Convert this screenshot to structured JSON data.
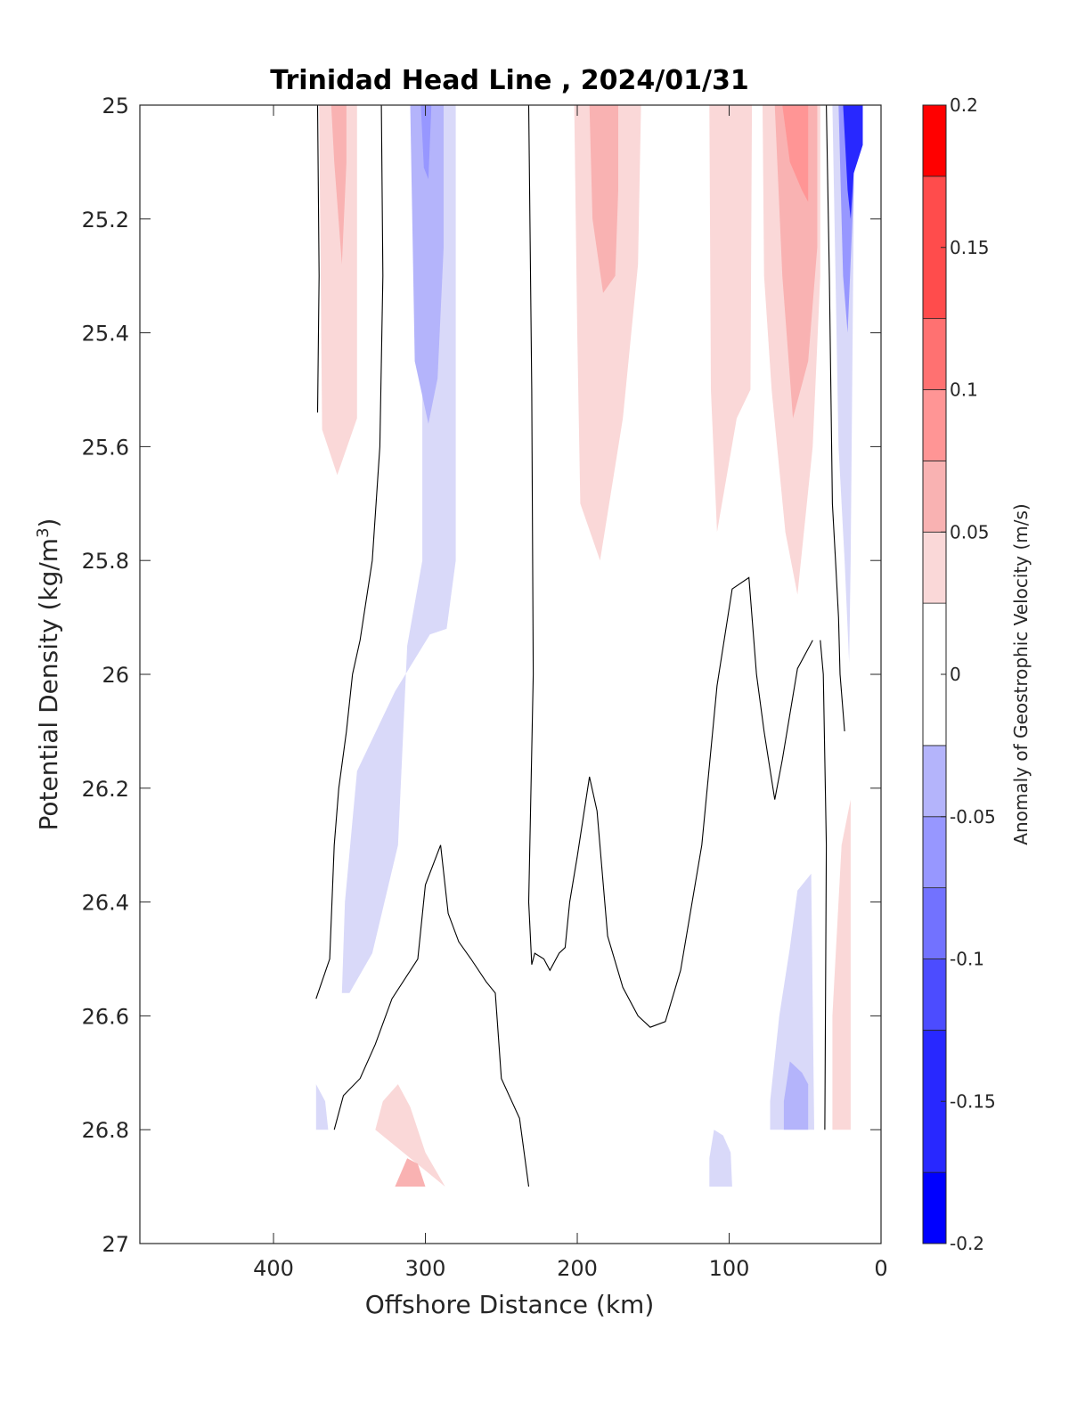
{
  "chart_data": {
    "type": "heatmap",
    "title": "Trinidad Head Line , 2024/01/31",
    "xlabel": "Offshore Distance (km)",
    "ylabel": "Potential Density (kg/m",
    "ylabel_superscript": "3",
    "ylabel_suffix": ")",
    "x_reversed": true,
    "y_reversed": true,
    "xlim": [
      0,
      488
    ],
    "ylim": [
      25,
      27
    ],
    "xticks": [
      400,
      300,
      200,
      100,
      0
    ],
    "yticks": [
      25,
      25.2,
      25.4,
      25.6,
      25.8,
      26,
      26.2,
      26.4,
      26.6,
      26.8,
      27
    ],
    "colorbar": {
      "label": "Anomaly of Geostrophic Velocity (m/s)",
      "range": [
        -0.2,
        0.2
      ],
      "ticks": [
        -0.2,
        -0.15,
        -0.1,
        -0.05,
        0,
        0.05,
        0.1,
        0.15,
        0.2
      ],
      "tick_labels": [
        "-0.2",
        "-0.15",
        "-0.1",
        "-0.05",
        "0",
        "0.05",
        "0.1",
        "0.15",
        "0.2"
      ],
      "levels": [
        {
          "min": -0.2,
          "max": -0.175,
          "color": "#0000ff"
        },
        {
          "min": -0.175,
          "max": -0.125,
          "color": "#2828ff"
        },
        {
          "min": -0.125,
          "max": -0.1,
          "color": "#4c4cff"
        },
        {
          "min": -0.1,
          "max": -0.075,
          "color": "#7272ff"
        },
        {
          "min": -0.075,
          "max": -0.05,
          "color": "#9797ff"
        },
        {
          "min": -0.05,
          "max": -0.025,
          "color": "#b4b4fb"
        },
        {
          "min": -0.025,
          "max": 0.025,
          "color": "#ffffff"
        },
        {
          "min": 0.025,
          "max": 0.05,
          "color": "#fad8d8"
        },
        {
          "min": 0.05,
          "max": 0.075,
          "color": "#f9b2b2"
        },
        {
          "min": 0.075,
          "max": 0.1,
          "color": "#ff9595"
        },
        {
          "min": 0.1,
          "max": 0.125,
          "color": "#ff7171"
        },
        {
          "min": 0.125,
          "max": 0.175,
          "color": "#ff4c4c"
        },
        {
          "min": 0.175,
          "max": 0.2,
          "color": "#ff0000"
        }
      ]
    },
    "filled_regions": [
      {
        "name": "pos-1",
        "value": 0.04,
        "color": "#fad8d8",
        "points": [
          [
            370,
            25.0
          ],
          [
            345,
            25.0
          ],
          [
            345,
            25.55
          ],
          [
            358,
            25.65
          ],
          [
            368,
            25.57
          ]
        ]
      },
      {
        "name": "pos-1-core",
        "value": 0.06,
        "color": "#f9b2b2",
        "points": [
          [
            362,
            25.0
          ],
          [
            352,
            25.0
          ],
          [
            352,
            25.1
          ],
          [
            355,
            25.28
          ],
          [
            360,
            25.1
          ]
        ]
      },
      {
        "name": "neg-1",
        "value": -0.04,
        "color": "#d9d9f9",
        "points": [
          [
            302,
            25.0
          ],
          [
            280,
            25.0
          ],
          [
            280,
            25.8
          ],
          [
            286,
            25.92
          ],
          [
            297,
            25.93
          ],
          [
            320,
            26.03
          ],
          [
            345,
            26.17
          ],
          [
            353,
            26.4
          ],
          [
            355,
            26.56
          ],
          [
            350,
            26.56
          ],
          [
            335,
            26.49
          ],
          [
            318,
            26.3
          ],
          [
            312,
            25.95
          ],
          [
            302,
            25.8
          ]
        ]
      },
      {
        "name": "neg-1-core",
        "value": -0.07,
        "color": "#b4b4fb",
        "points": [
          [
            302,
            25.0
          ],
          [
            288,
            25.0
          ],
          [
            288,
            25.25
          ],
          [
            292,
            25.48
          ],
          [
            298,
            25.56
          ],
          [
            307,
            25.45
          ],
          [
            310,
            25.0
          ]
        ]
      },
      {
        "name": "neg-1-center",
        "value": -0.09,
        "color": "#9797ff",
        "points": [
          [
            303,
            25.0
          ],
          [
            296,
            25.0
          ],
          [
            298,
            25.13
          ],
          [
            301,
            25.11
          ]
        ]
      },
      {
        "name": "pos-2",
        "value": 0.04,
        "color": "#fad8d8",
        "points": [
          [
            202,
            25.0
          ],
          [
            158,
            25.0
          ],
          [
            160,
            25.28
          ],
          [
            170,
            25.55
          ],
          [
            185,
            25.8
          ],
          [
            198,
            25.7
          ],
          [
            200,
            25.4
          ]
        ]
      },
      {
        "name": "pos-2-core",
        "value": 0.07,
        "color": "#f9b2b2",
        "points": [
          [
            192,
            25.0
          ],
          [
            173,
            25.0
          ],
          [
            173,
            25.15
          ],
          [
            175,
            25.3
          ],
          [
            183,
            25.33
          ],
          [
            190,
            25.2
          ]
        ]
      },
      {
        "name": "pos-3",
        "value": 0.04,
        "color": "#fad8d8",
        "points": [
          [
            113,
            25.0
          ],
          [
            85,
            25.0
          ],
          [
            86,
            25.5
          ],
          [
            95,
            25.55
          ],
          [
            108,
            25.75
          ],
          [
            112,
            25.5
          ]
        ]
      },
      {
        "name": "pos-4",
        "value": 0.05,
        "color": "#fad8d8",
        "points": [
          [
            78,
            25.0
          ],
          [
            40,
            25.0
          ],
          [
            40,
            25.3
          ],
          [
            45,
            25.6
          ],
          [
            55,
            25.86
          ],
          [
            63,
            25.75
          ],
          [
            72,
            25.5
          ],
          [
            77,
            25.3
          ]
        ]
      },
      {
        "name": "pos-4-core",
        "value": 0.07,
        "color": "#f9b2b2",
        "points": [
          [
            70,
            25.0
          ],
          [
            42,
            25.0
          ],
          [
            42,
            25.25
          ],
          [
            48,
            25.45
          ],
          [
            58,
            25.55
          ],
          [
            65,
            25.3
          ]
        ]
      },
      {
        "name": "pos-4-center",
        "value": 0.09,
        "color": "#ff9595",
        "points": [
          [
            65,
            25.0
          ],
          [
            48,
            25.0
          ],
          [
            48,
            25.17
          ],
          [
            52,
            25.15
          ],
          [
            60,
            25.1
          ]
        ]
      },
      {
        "name": "neg-coast",
        "value": -0.05,
        "color": "#d9d9f9",
        "points": [
          [
            32,
            25.0
          ],
          [
            18,
            25.0
          ],
          [
            18,
            25.2
          ],
          [
            20,
            25.8
          ],
          [
            21,
            25.98
          ],
          [
            24,
            25.8
          ],
          [
            28,
            25.6
          ],
          [
            30,
            25.3
          ]
        ]
      },
      {
        "name": "neg-coast-core",
        "value": -0.08,
        "color": "#9797ff",
        "points": [
          [
            28,
            25.0
          ],
          [
            18,
            25.0
          ],
          [
            18,
            25.15
          ],
          [
            22,
            25.4
          ],
          [
            25,
            25.3
          ],
          [
            27,
            25.1
          ]
        ]
      },
      {
        "name": "neg-coast-strong",
        "value": -0.15,
        "color": "#2828ff",
        "points": [
          [
            25,
            25.0
          ],
          [
            12,
            25.0
          ],
          [
            12,
            25.07
          ],
          [
            18,
            25.12
          ],
          [
            20,
            25.2
          ],
          [
            22,
            25.15
          ]
        ]
      },
      {
        "name": "pos-5",
        "value": 0.04,
        "color": "#fad8d8",
        "points": [
          [
            30,
            26.8
          ],
          [
            20,
            26.8
          ],
          [
            20,
            26.22
          ],
          [
            26,
            26.3
          ],
          [
            32,
            26.6
          ],
          [
            32,
            26.8
          ]
        ]
      },
      {
        "name": "neg-2",
        "value": -0.04,
        "color": "#d9d9f9",
        "points": [
          [
            73,
            26.8
          ],
          [
            44,
            26.8
          ],
          [
            46,
            26.35
          ],
          [
            55,
            26.38
          ],
          [
            60,
            26.48
          ],
          [
            67,
            26.6
          ],
          [
            73,
            26.75
          ]
        ]
      },
      {
        "name": "neg-2-core",
        "value": -0.07,
        "color": "#b4b4fb",
        "points": [
          [
            64,
            26.8
          ],
          [
            48,
            26.8
          ],
          [
            48,
            26.72
          ],
          [
            52,
            26.7
          ],
          [
            60,
            26.68
          ],
          [
            64,
            26.75
          ]
        ]
      },
      {
        "name": "pos-6",
        "value": 0.04,
        "color": "#fad8d8",
        "points": [
          [
            333,
            26.8
          ],
          [
            287,
            26.9
          ],
          [
            300,
            26.84
          ],
          [
            310,
            26.76
          ],
          [
            318,
            26.72
          ],
          [
            328,
            26.75
          ]
        ]
      },
      {
        "name": "pos-6-core",
        "value": 0.06,
        "color": "#f9b2b2",
        "points": [
          [
            320,
            26.9
          ],
          [
            300,
            26.9
          ],
          [
            305,
            26.86
          ],
          [
            312,
            26.85
          ]
        ]
      },
      {
        "name": "neg-3",
        "value": -0.04,
        "color": "#d9d9f9",
        "points": [
          [
            113,
            26.9
          ],
          [
            98,
            26.9
          ],
          [
            99,
            26.84
          ],
          [
            104,
            26.81
          ],
          [
            110,
            26.8
          ],
          [
            113,
            26.85
          ]
        ]
      },
      {
        "name": "neg-4",
        "value": -0.03,
        "color": "#d9d9f9",
        "points": [
          [
            372,
            26.8
          ],
          [
            364,
            26.8
          ],
          [
            366,
            26.75
          ],
          [
            372,
            26.72
          ]
        ]
      }
    ],
    "zero_contours": [
      {
        "name": "contour-a",
        "points": [
          [
            371,
            25.0
          ],
          [
            370,
            25.3
          ],
          [
            371,
            25.54
          ]
        ]
      },
      {
        "name": "contour-b",
        "points": [
          [
            329,
            25.0
          ],
          [
            328,
            25.3
          ],
          [
            330,
            25.6
          ],
          [
            335,
            25.8
          ],
          [
            343,
            25.94
          ],
          [
            348,
            26.0
          ],
          [
            352,
            26.1
          ],
          [
            357,
            26.2
          ],
          [
            360,
            26.3
          ],
          [
            363,
            26.5
          ],
          [
            372,
            26.57
          ]
        ]
      },
      {
        "name": "contour-c",
        "points": [
          [
            232,
            25.0
          ],
          [
            230,
            25.5
          ],
          [
            229,
            26.0
          ],
          [
            232,
            26.4
          ],
          [
            230,
            26.51
          ],
          [
            228,
            26.49
          ],
          [
            222,
            26.5
          ],
          [
            218,
            26.52
          ],
          [
            212,
            26.49
          ],
          [
            208,
            26.48
          ],
          [
            205,
            26.4
          ],
          [
            200,
            26.32
          ],
          [
            192,
            26.18
          ],
          [
            187,
            26.24
          ],
          [
            180,
            26.46
          ],
          [
            170,
            26.55
          ],
          [
            160,
            26.6
          ],
          [
            152,
            26.62
          ],
          [
            142,
            26.61
          ],
          [
            132,
            26.52
          ],
          [
            118,
            26.3
          ],
          [
            108,
            26.02
          ],
          [
            98,
            25.85
          ],
          [
            87,
            25.83
          ],
          [
            82,
            26.0
          ],
          [
            77,
            26.1
          ],
          [
            70,
            26.22
          ],
          [
            65,
            26.15
          ],
          [
            55,
            25.99
          ],
          [
            45,
            25.94
          ]
        ]
      },
      {
        "name": "contour-d",
        "points": [
          [
            360,
            26.8
          ],
          [
            354,
            26.74
          ],
          [
            343,
            26.71
          ],
          [
            333,
            26.65
          ],
          [
            322,
            26.57
          ],
          [
            305,
            26.5
          ],
          [
            300,
            26.37
          ],
          [
            290,
            26.3
          ],
          [
            285,
            26.42
          ],
          [
            278,
            26.47
          ],
          [
            270,
            26.5
          ],
          [
            260,
            26.54
          ],
          [
            254,
            26.56
          ],
          [
            250,
            26.71
          ],
          [
            238,
            26.78
          ],
          [
            232,
            26.9
          ]
        ]
      },
      {
        "name": "contour-e",
        "points": [
          [
            36,
            25.0
          ],
          [
            34,
            25.3
          ],
          [
            32,
            25.7
          ],
          [
            30,
            25.8
          ],
          [
            28,
            25.9
          ],
          [
            27,
            26.0
          ],
          [
            24,
            26.1
          ]
        ]
      },
      {
        "name": "contour-f",
        "points": [
          [
            40,
            25.94
          ],
          [
            38,
            26.0
          ],
          [
            36,
            26.3
          ],
          [
            37,
            26.8
          ]
        ]
      }
    ]
  }
}
